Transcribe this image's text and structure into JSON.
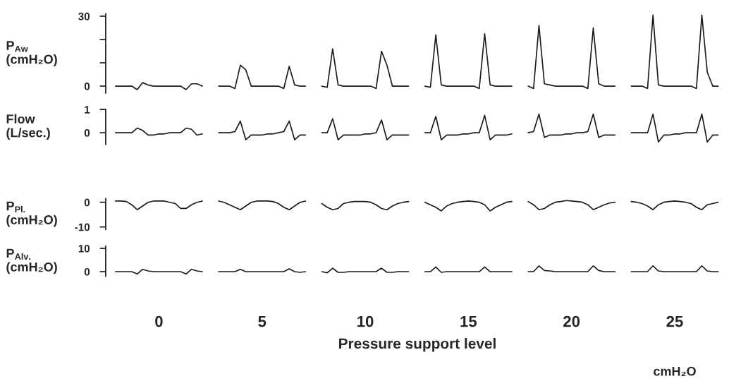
{
  "chart_data": [
    {
      "type": "line",
      "ylabel": "P$_{Aw}$\n(cmH₂O)",
      "tick_labels": "y",
      "ylim": [
        -3,
        31
      ],
      "yticks": [
        0,
        {
          "value": 10,
          "label": null
        },
        {
          "value": 20,
          "label": null
        },
        30
      ],
      "categories": [
        null,
        null,
        null,
        null,
        null,
        null,
        null,
        null,
        "0",
        null,
        null,
        null,
        null,
        null,
        null,
        null,
        null,
        null,
        null,
        null,
        null,
        null,
        null,
        null,
        null,
        null,
        null,
        "5",
        null,
        null,
        null,
        null,
        null,
        null,
        null,
        null,
        null,
        null,
        null,
        null,
        null,
        null,
        null,
        null,
        null,
        null,
        "10",
        null,
        null,
        null,
        null,
        null,
        null,
        null,
        null,
        null,
        null,
        null,
        null,
        null,
        null,
        null,
        null,
        null,
        null,
        "15",
        null,
        null,
        null,
        null,
        null,
        null,
        null,
        null,
        null,
        null,
        null,
        null,
        null,
        null,
        null,
        null,
        null,
        null,
        "20",
        null,
        null,
        null,
        null,
        null,
        null,
        null,
        null,
        null,
        null,
        null,
        null,
        null,
        null,
        null,
        null,
        null,
        null,
        "25",
        null,
        null,
        null,
        null,
        null,
        null,
        null,
        null
      ],
      "series": [
        {
          "color": "#1a1a1a",
          "values": [
            0,
            0,
            0,
            0,
            -1.5,
            1.5,
            0.5,
            0,
            0,
            0,
            0,
            0,
            0,
            -1.5,
            1,
            1,
            0,
            null,
            null,
            0,
            0,
            0,
            -1,
            9,
            7,
            0,
            0,
            0,
            0,
            0,
            0,
            -1,
            8.5,
            0.5,
            0,
            0,
            null,
            null,
            0,
            -0.5,
            16,
            0.5,
            0,
            0,
            0,
            0,
            0,
            0,
            -1,
            15,
            9,
            0,
            0,
            0,
            0,
            null,
            null,
            0,
            -0.5,
            22,
            0.5,
            0,
            0,
            0,
            0,
            0,
            0,
            -1,
            22.5,
            0.5,
            0,
            0,
            0,
            0,
            null,
            null,
            0,
            -1,
            26,
            1,
            0.5,
            0,
            0,
            0,
            0,
            0,
            0,
            -1,
            25,
            1,
            0,
            0,
            0,
            null,
            null,
            0,
            0,
            0,
            -1,
            30.5,
            0.5,
            0,
            0,
            0,
            0,
            0,
            0,
            -1,
            30.5,
            6,
            0,
            0
          ]
        }
      ]
    },
    {
      "type": "line",
      "ylabel": "Flow\n(L/sec.)",
      "tick_labels": "y",
      "ylim": [
        -0.5,
        1
      ],
      "yticks": [
        0,
        1
      ],
      "categories": [
        null,
        null,
        null,
        null,
        null,
        null,
        null,
        null,
        "0",
        null,
        null,
        null,
        null,
        null,
        null,
        null,
        null,
        null,
        null,
        null,
        null,
        null,
        null,
        null,
        null,
        null,
        null,
        "5",
        null,
        null,
        null,
        null,
        null,
        null,
        null,
        null,
        null,
        null,
        null,
        null,
        null,
        null,
        null,
        null,
        null,
        null,
        "10",
        null,
        null,
        null,
        null,
        null,
        null,
        null,
        null,
        null,
        null,
        null,
        null,
        null,
        null,
        null,
        null,
        null,
        null,
        "15",
        null,
        null,
        null,
        null,
        null,
        null,
        null,
        null,
        null,
        null,
        null,
        null,
        null,
        null,
        null,
        null,
        null,
        null,
        "20",
        null,
        null,
        null,
        null,
        null,
        null,
        null,
        null,
        null,
        null,
        null,
        null,
        null,
        null,
        null,
        null,
        null,
        null,
        "25",
        null,
        null,
        null,
        null,
        null,
        null,
        null,
        null
      ],
      "series": [
        {
          "color": "#1a1a1a",
          "values": [
            0,
            0,
            0,
            0,
            0.2,
            0.1,
            -0.1,
            -0.1,
            -0.05,
            -0.05,
            0,
            0,
            0,
            0.2,
            0.15,
            -0.1,
            -0.05,
            null,
            null,
            0,
            0,
            0,
            0.05,
            0.5,
            -0.3,
            -0.1,
            -0.1,
            -0.1,
            -0.05,
            -0.05,
            0,
            0.05,
            0.5,
            -0.3,
            -0.1,
            -0.1,
            null,
            null,
            0,
            0,
            0.6,
            -0.3,
            -0.1,
            -0.1,
            -0.1,
            -0.1,
            -0.05,
            -0.05,
            0,
            0.55,
            -0.3,
            -0.1,
            -0.1,
            -0.1,
            -0.1,
            null,
            null,
            0,
            0,
            0.7,
            -0.3,
            -0.1,
            -0.1,
            -0.1,
            -0.05,
            -0.05,
            0,
            0,
            0.75,
            -0.3,
            -0.1,
            -0.1,
            -0.1,
            -0.05,
            null,
            null,
            0,
            0.05,
            0.8,
            -0.2,
            -0.1,
            -0.1,
            -0.1,
            -0.05,
            -0.05,
            0,
            0,
            0.05,
            0.8,
            -0.2,
            -0.1,
            -0.1,
            -0.1,
            null,
            null,
            0,
            0,
            0,
            0,
            0.8,
            -0.4,
            -0.1,
            -0.1,
            -0.05,
            -0.05,
            0,
            0,
            0,
            0.8,
            -0.4,
            -0.1,
            -0.1
          ]
        }
      ]
    },
    {
      "type": "line",
      "ylabel": "P$_{Pl.}$\n(cmH₂O)",
      "tick_labels": "y",
      "ylim": [
        -11,
        1.5
      ],
      "yticks": [
        -10,
        0
      ],
      "categories": [
        null,
        null,
        null,
        null,
        null,
        null,
        null,
        null,
        "0",
        null,
        null,
        null,
        null,
        null,
        null,
        null,
        null,
        null,
        null,
        null,
        null,
        null,
        null,
        null,
        null,
        null,
        null,
        "5",
        null,
        null,
        null,
        null,
        null,
        null,
        null,
        null,
        null,
        null,
        null,
        null,
        null,
        null,
        null,
        null,
        null,
        null,
        "10",
        null,
        null,
        null,
        null,
        null,
        null,
        null,
        null,
        null,
        null,
        null,
        null,
        null,
        null,
        null,
        null,
        null,
        null,
        "15",
        null,
        null,
        null,
        null,
        null,
        null,
        null,
        null,
        null,
        null,
        null,
        null,
        null,
        null,
        null,
        null,
        null,
        null,
        "20",
        null,
        null,
        null,
        null,
        null,
        null,
        null,
        null,
        null,
        null,
        null,
        null,
        null,
        null,
        null,
        null,
        null,
        null,
        "25",
        null,
        null,
        null,
        null,
        null,
        null,
        null,
        null
      ],
      "series": [
        {
          "color": "#1a1a1a",
          "values": [
            0.5,
            0.5,
            0.3,
            -1,
            -3,
            -1.5,
            0,
            0.5,
            0.5,
            0.5,
            0,
            -0.5,
            -2.5,
            -2.5,
            -1,
            0,
            0.5,
            null,
            null,
            0.5,
            0,
            -1,
            -2,
            -3,
            -1.5,
            0,
            0.5,
            0.5,
            0.5,
            0.3,
            -0.5,
            -2,
            -3,
            -1.5,
            0,
            0.5,
            null,
            null,
            -0.5,
            -2,
            -3,
            -2.5,
            -0.5,
            0,
            0.3,
            0.3,
            0.3,
            0,
            -1,
            -2.5,
            -3,
            -1.5,
            -0.5,
            0,
            0.3,
            null,
            null,
            0,
            -1,
            -2,
            -3.5,
            -1.5,
            -0.5,
            0,
            0.3,
            0.5,
            0.3,
            0,
            -1,
            -3.5,
            -2,
            -1,
            0,
            0.3,
            null,
            null,
            0.3,
            -1,
            -3,
            -2.5,
            -1,
            0,
            0.3,
            0.7,
            0.5,
            0.3,
            0,
            -1,
            -3,
            -2,
            -1,
            -0.3,
            0,
            null,
            null,
            0.3,
            0,
            -0.5,
            -1.5,
            -3,
            -1,
            0,
            0.3,
            0.5,
            0.3,
            0,
            -0.5,
            -2,
            -3,
            -1,
            -0.5,
            0
          ]
        }
      ]
    },
    {
      "type": "line",
      "ylabel": "P$_{Alv.}$\n(cmH₂O)",
      "xlabel": "Pressure support level",
      "annotations": [
        "cmH₂O"
      ],
      "ylim": [
        -2,
        11
      ],
      "yticks": [
        0,
        10
      ],
      "categories": [
        null,
        null,
        null,
        null,
        null,
        null,
        null,
        null,
        "0",
        null,
        null,
        null,
        null,
        null,
        null,
        null,
        null,
        null,
        null,
        null,
        null,
        null,
        null,
        null,
        null,
        null,
        null,
        "5",
        null,
        null,
        null,
        null,
        null,
        null,
        null,
        null,
        null,
        null,
        null,
        null,
        null,
        null,
        null,
        null,
        null,
        null,
        "10",
        null,
        null,
        null,
        null,
        null,
        null,
        null,
        null,
        null,
        null,
        null,
        null,
        null,
        null,
        null,
        null,
        null,
        null,
        "15",
        null,
        null,
        null,
        null,
        null,
        null,
        null,
        null,
        null,
        null,
        null,
        null,
        null,
        null,
        null,
        null,
        null,
        null,
        "20",
        null,
        null,
        null,
        null,
        null,
        null,
        null,
        null,
        null,
        null,
        null,
        null,
        null,
        null,
        null,
        null,
        null,
        null,
        "25",
        null,
        null,
        null,
        null,
        null,
        null,
        null,
        null
      ],
      "series": [
        {
          "color": "#1a1a1a",
          "values": [
            0,
            0,
            0,
            0,
            -1,
            1,
            0.3,
            0,
            0,
            0,
            0,
            0,
            0,
            -1,
            1,
            0.3,
            0,
            null,
            null,
            0,
            0,
            0,
            0,
            1,
            0,
            0,
            0,
            0,
            0,
            0,
            0,
            0,
            1.2,
            0,
            -0.3,
            0,
            null,
            null,
            0,
            -0.5,
            1.5,
            -0.3,
            -0.3,
            0,
            0,
            0,
            0,
            0,
            0,
            1.5,
            -0.3,
            -0.3,
            0,
            0,
            0,
            null,
            null,
            0,
            0,
            2,
            -0.3,
            0,
            0,
            0,
            0,
            0,
            0,
            0,
            2,
            0,
            0,
            0,
            0,
            0,
            null,
            null,
            0,
            0,
            2.5,
            0.5,
            0.3,
            0,
            0,
            0,
            0,
            0,
            0,
            0,
            2.5,
            0.5,
            0,
            0,
            0,
            null,
            null,
            0,
            0,
            0,
            0,
            2.5,
            0.3,
            0,
            0,
            0,
            0,
            0,
            0,
            0,
            2.5,
            0.3,
            0,
            0
          ]
        }
      ]
    }
  ]
}
